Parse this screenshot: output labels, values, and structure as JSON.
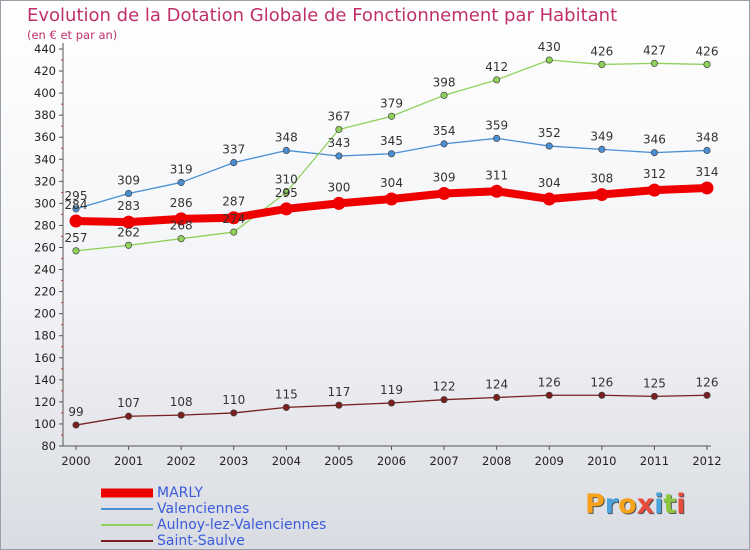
{
  "header": {
    "title": "Evolution de la Dotation Globale de Fonctionnement par Habitant",
    "subtitle": "(en € et par an)"
  },
  "logo": {
    "letters": [
      "P",
      "r",
      "o",
      "x",
      "i",
      "t",
      "i"
    ],
    "colors": [
      "#f7a21b",
      "#4aa3df",
      "#f7a21b",
      "#e84c3d",
      "#4aa3df",
      "#8cc63f",
      "#e84c3d"
    ]
  },
  "chart_data": {
    "type": "line",
    "title": "Evolution de la Dotation Globale de Fonctionnement par Habitant",
    "subtitle": "(en € et par an)",
    "x": [
      2000,
      2001,
      2002,
      2003,
      2004,
      2005,
      2006,
      2007,
      2008,
      2009,
      2010,
      2011,
      2012
    ],
    "ylim": [
      80,
      440
    ],
    "ytick_step": 20,
    "grid": false,
    "legend_position": "bottom-left",
    "series": [
      {
        "name": "MARLY",
        "color": "#ee0000",
        "emphasis": true,
        "values": [
          284,
          283,
          286,
          287,
          295,
          300,
          304,
          309,
          311,
          304,
          308,
          312,
          314
        ]
      },
      {
        "name": "Valenciennes",
        "color": "#4a8fd4",
        "emphasis": false,
        "values": [
          295,
          309,
          319,
          337,
          348,
          343,
          345,
          354,
          359,
          352,
          349,
          346,
          348
        ]
      },
      {
        "name": "Aulnoy-lez-Valenciennes",
        "color": "#8fd15a",
        "emphasis": false,
        "values": [
          257,
          262,
          268,
          274,
          310,
          367,
          379,
          398,
          412,
          430,
          426,
          427,
          426
        ]
      },
      {
        "name": "Saint-Saulve",
        "color": "#7a1f1f",
        "emphasis": false,
        "values": [
          99,
          107,
          108,
          110,
          115,
          117,
          119,
          122,
          124,
          126,
          126,
          125,
          126
        ]
      }
    ]
  }
}
